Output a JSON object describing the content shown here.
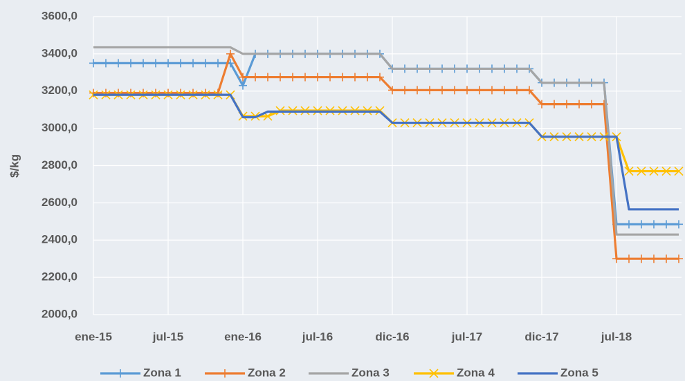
{
  "chart_data": {
    "type": "line",
    "y_label": "$/kg",
    "categories": [
      "ene-15",
      null,
      null,
      null,
      null,
      null,
      "jul-15",
      null,
      null,
      null,
      null,
      null,
      "ene-16",
      null,
      null,
      null,
      null,
      null,
      "jul-16",
      null,
      null,
      null,
      null,
      null,
      "dic-16",
      null,
      null,
      null,
      null,
      null,
      "jul-17",
      null,
      null,
      null,
      null,
      null,
      "dic-17",
      null,
      null,
      null,
      null,
      null,
      "jul-18",
      null,
      null,
      null,
      null,
      null
    ],
    "series": [
      {
        "name": "Zona 1",
        "color": "#5b9bd5",
        "marker": "plus",
        "values": [
          3350,
          3350,
          3350,
          3350,
          3350,
          3350,
          3350,
          3350,
          3350,
          3350,
          3350,
          3350,
          3230,
          3400,
          3400,
          3400,
          3400,
          3400,
          3400,
          3400,
          3400,
          3400,
          3400,
          3400,
          3320,
          3320,
          3320,
          3320,
          3320,
          3320,
          3320,
          3320,
          3320,
          3320,
          3320,
          3320,
          3245,
          3245,
          3245,
          3245,
          3245,
          3245,
          2485,
          2485,
          2485,
          2485,
          2485,
          2485
        ]
      },
      {
        "name": "Zona 2",
        "color": "#ed7d31",
        "marker": "plus",
        "values": [
          3190,
          3190,
          3190,
          3190,
          3190,
          3190,
          3190,
          3190,
          3190,
          3190,
          3190,
          3400,
          3275,
          3275,
          3275,
          3275,
          3275,
          3275,
          3275,
          3275,
          3275,
          3275,
          3275,
          3275,
          3205,
          3205,
          3205,
          3205,
          3205,
          3205,
          3205,
          3205,
          3205,
          3205,
          3205,
          3205,
          3130,
          3130,
          3130,
          3130,
          3130,
          3130,
          2300,
          2300,
          2300,
          2300,
          2300,
          2300
        ]
      },
      {
        "name": "Zona 3",
        "color": "#a5a5a5",
        "marker": "none",
        "values": [
          3435,
          3435,
          3435,
          3435,
          3435,
          3435,
          3435,
          3435,
          3435,
          3435,
          3435,
          3435,
          3400,
          3400,
          3400,
          3400,
          3400,
          3400,
          3400,
          3400,
          3400,
          3400,
          3400,
          3400,
          3320,
          3320,
          3320,
          3320,
          3320,
          3320,
          3320,
          3320,
          3320,
          3320,
          3320,
          3320,
          3245,
          3245,
          3245,
          3245,
          3245,
          3245,
          2430,
          2430,
          2430,
          2430,
          2430,
          2430
        ]
      },
      {
        "name": "Zona 4",
        "color": "#ffc000",
        "marker": "cross",
        "values": [
          3180,
          3180,
          3180,
          3180,
          3180,
          3180,
          3180,
          3180,
          3180,
          3180,
          3180,
          3180,
          3065,
          3065,
          3065,
          3095,
          3095,
          3095,
          3095,
          3095,
          3095,
          3095,
          3095,
          3095,
          3030,
          3030,
          3030,
          3030,
          3030,
          3030,
          3030,
          3030,
          3030,
          3030,
          3030,
          3030,
          2955,
          2955,
          2955,
          2955,
          2955,
          2955,
          2955,
          2770,
          2770,
          2770,
          2770,
          2770
        ]
      },
      {
        "name": "Zona 5",
        "color": "#4472c4",
        "marker": "none",
        "values": [
          3180,
          3180,
          3180,
          3180,
          3180,
          3180,
          3180,
          3180,
          3180,
          3180,
          3180,
          3180,
          3060,
          3060,
          3090,
          3090,
          3090,
          3090,
          3090,
          3090,
          3090,
          3090,
          3090,
          3090,
          3030,
          3030,
          3030,
          3030,
          3030,
          3030,
          3030,
          3030,
          3030,
          3030,
          3030,
          3030,
          2955,
          2955,
          2955,
          2955,
          2955,
          2955,
          2955,
          2565,
          2565,
          2565,
          2565,
          2565
        ]
      }
    ],
    "ylim": [
      2000,
      3600
    ],
    "yticks": [
      {
        "value": 2000,
        "label": "2000,0"
      },
      {
        "value": 2200,
        "label": "2200,0"
      },
      {
        "value": 2400,
        "label": "2400,0"
      },
      {
        "value": 2600,
        "label": "2600,0"
      },
      {
        "value": 2800,
        "label": "2800,0"
      },
      {
        "value": 3000,
        "label": "3000,0"
      },
      {
        "value": 3200,
        "label": "3200,0"
      },
      {
        "value": 3400,
        "label": "3400,0"
      },
      {
        "value": 3600,
        "label": "3600,0"
      }
    ],
    "grid": true,
    "legend": "bottom"
  }
}
